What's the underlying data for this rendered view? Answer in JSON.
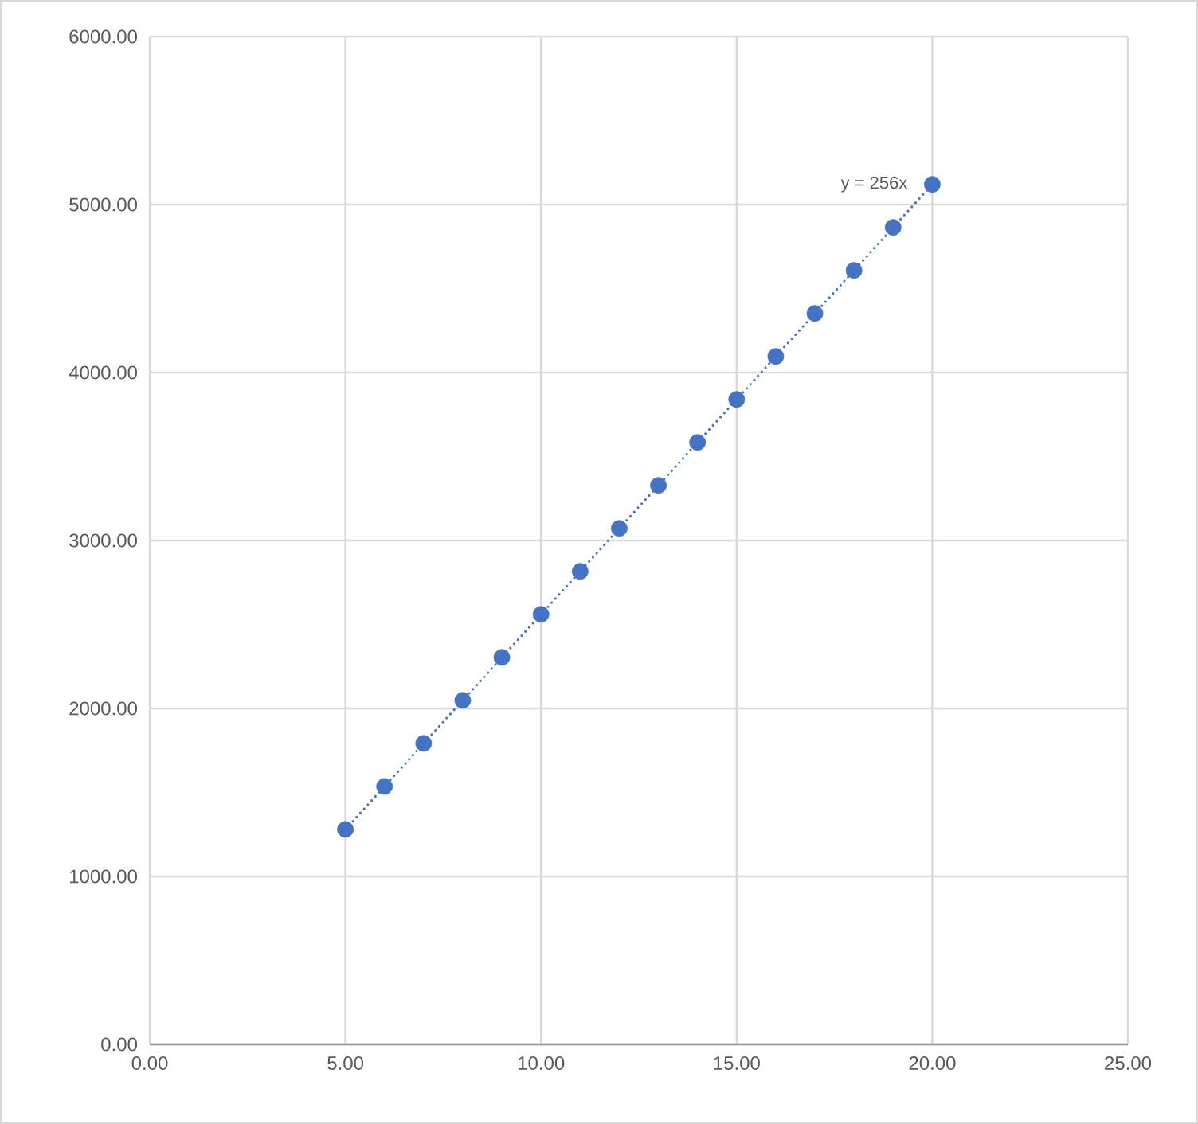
{
  "chart_data": {
    "type": "scatter",
    "x": [
      5,
      6,
      7,
      8,
      9,
      10,
      11,
      12,
      13,
      14,
      15,
      16,
      17,
      18,
      19,
      20
    ],
    "series": [
      {
        "color": "#4472c4",
        "marker": "circle",
        "values": [
          1280,
          1536,
          1792,
          2048,
          2304,
          2560,
          2816,
          3072,
          3328,
          3584,
          3840,
          4096,
          4352,
          4608,
          4864,
          5120
        ]
      },
      {
        "type": "line",
        "color": "#4472c4",
        "line_style": "dotted",
        "marker": "none",
        "x": [
          5,
          20
        ],
        "values": [
          1280,
          5120
        ]
      }
    ],
    "annotations": [
      {
        "text": "y = 256x",
        "x": 20,
        "y": 5120
      }
    ],
    "xlim": [
      0,
      25
    ],
    "xticks": [
      {
        "value": 0,
        "label": "0.00"
      },
      {
        "value": 5,
        "label": "5.00"
      },
      {
        "value": 10,
        "label": "10.00"
      },
      {
        "value": 15,
        "label": "15.00"
      },
      {
        "value": 20,
        "label": "20.00"
      },
      {
        "value": 25,
        "label": "25.00"
      }
    ],
    "ylim": [
      0,
      6000
    ],
    "yticks": [
      {
        "value": 0,
        "label": "0.00"
      },
      {
        "value": 1000,
        "label": "1000.00"
      },
      {
        "value": 2000,
        "label": "2000.00"
      },
      {
        "value": 3000,
        "label": "3000.00"
      },
      {
        "value": 4000,
        "label": "4000.00"
      },
      {
        "value": 5000,
        "label": "5000.00"
      },
      {
        "value": 6000,
        "label": "6000.00"
      }
    ],
    "grid": true
  }
}
